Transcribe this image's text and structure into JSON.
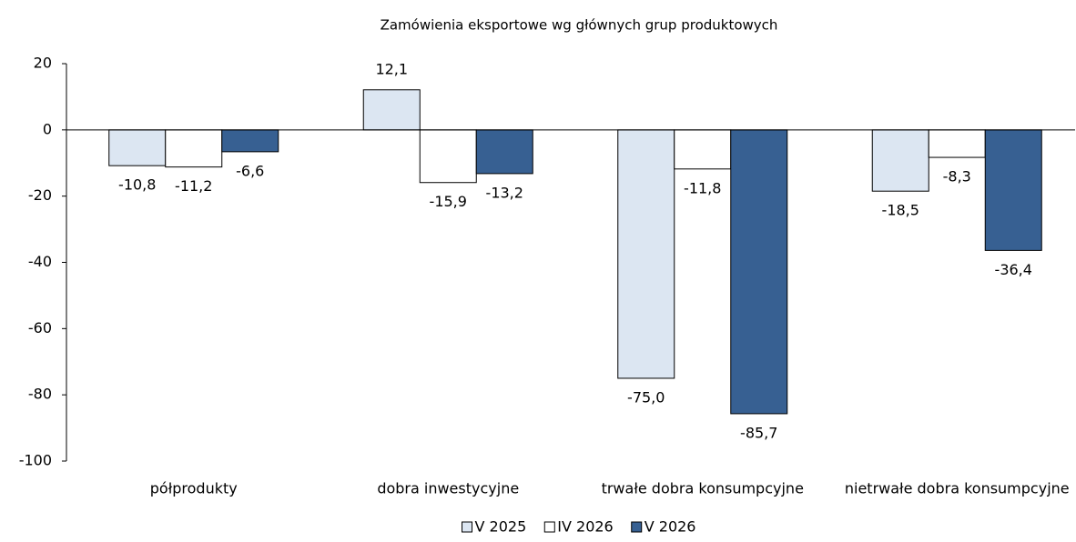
{
  "chart_data": {
    "type": "bar",
    "title": "Zamówienia eksportowe wg głównych grup produktowych",
    "categories": [
      "półprodukty",
      "dobra inwestycyjne",
      "trwałe dobra konsumpcyjne",
      "nietrwałe dobra konsumpcyjne"
    ],
    "series": [
      {
        "name": "V 2025",
        "color": "#dce6f2",
        "values": [
          -10.8,
          12.1,
          -75.0,
          -18.5
        ],
        "value_labels": [
          "-10,8",
          "12,1",
          "-75,0",
          "-18,5"
        ]
      },
      {
        "name": "IV 2026",
        "color": "#ffffff",
        "values": [
          -11.2,
          -15.9,
          -11.8,
          -8.3
        ],
        "value_labels": [
          "-11,2",
          "-15,9",
          "-11,8",
          "-8,3"
        ]
      },
      {
        "name": "V 2026",
        "color": "#376092",
        "values": [
          -6.6,
          -13.2,
          -85.7,
          -36.4
        ],
        "value_labels": [
          "-6,6",
          "-13,2",
          "-85,7",
          "-36,4"
        ]
      }
    ],
    "ylim": [
      -100,
      20
    ],
    "yticks": [
      -100,
      -80,
      -60,
      -40,
      -20,
      0,
      20
    ],
    "legend": "bottom"
  }
}
